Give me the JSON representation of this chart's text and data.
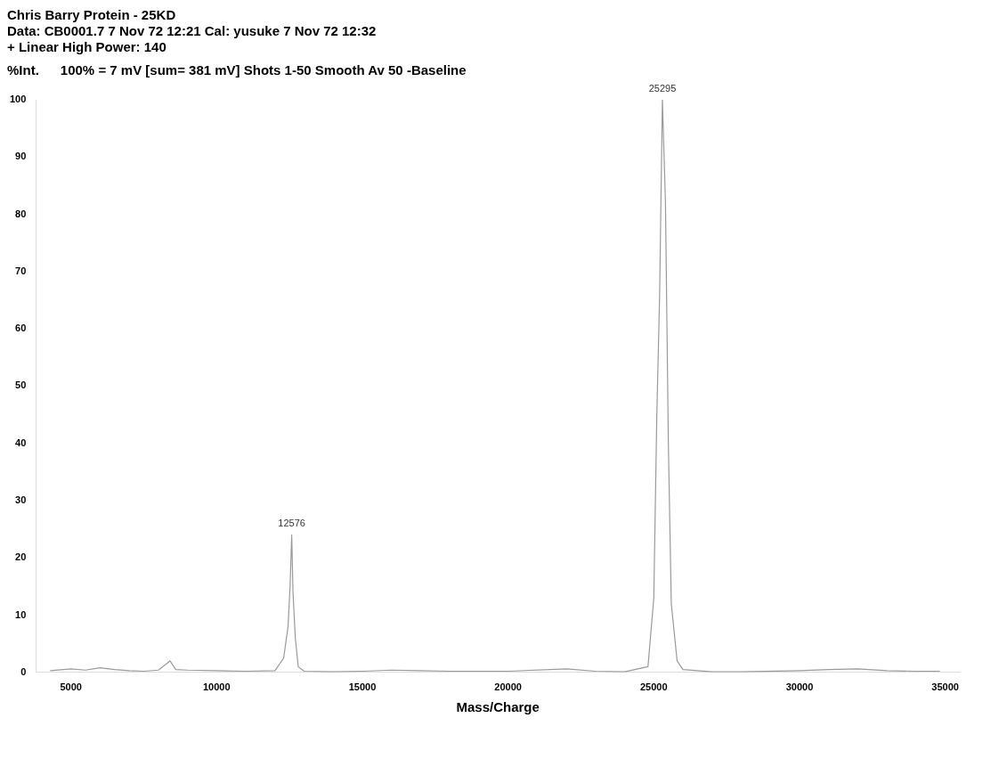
{
  "chart_data": {
    "type": "line",
    "title": "Chris Barry  Protein  - 25KD",
    "subtitle": "Data: CB0001.7 7 Nov 72 12:21 Cal: yusuke 7 Nov 72 12:32",
    "annotations": [
      "+ Linear High Power: 140",
      "100% = 7 mV [sum= 381 mV]  Shots 1-50 Smooth Av 50 -Baseline",
      {
        "text": "12576",
        "x": 12576,
        "y": 24
      },
      {
        "text": "25295",
        "x": 25295,
        "y": 100
      }
    ],
    "ylabel": "%Int.",
    "xlabel": "Mass/Charge",
    "series": [
      {
        "color": "#9a9a9a",
        "x": [
          4300,
          5000,
          5500,
          6000,
          6500,
          7000,
          7500,
          8000,
          8400,
          8600,
          9000,
          10000,
          11000,
          12000,
          12300,
          12450,
          12520,
          12576,
          12620,
          12700,
          12800,
          13000,
          14000,
          15000,
          16000,
          17000,
          18000,
          20000,
          22000,
          23000,
          24000,
          24800,
          25000,
          25100,
          25200,
          25295,
          25400,
          25500,
          25600,
          25800,
          26000,
          27000,
          28000,
          30000,
          31000,
          32000,
          33000,
          34000,
          34800
        ],
        "values": [
          0.3,
          0.6,
          0.4,
          0.8,
          0.5,
          0.3,
          0.2,
          0.4,
          2,
          0.5,
          0.4,
          0.3,
          0.2,
          0.3,
          2.5,
          8,
          15,
          24,
          14,
          6,
          1,
          0.2,
          0.1,
          0.2,
          0.4,
          0.3,
          0.2,
          0.2,
          0.6,
          0.2,
          0.1,
          1,
          13,
          44,
          66,
          100,
          82,
          40,
          12,
          2,
          0.5,
          0.1,
          0.1,
          0.3,
          0.5,
          0.6,
          0.3,
          0.2,
          0.2
        ]
      }
    ],
    "xlim": [
      3800,
      35500
    ],
    "xticks": [
      5000,
      10000,
      15000,
      20000,
      25000,
      30000,
      35000
    ],
    "ylim": [
      0,
      100
    ],
    "yticks": [
      0,
      10,
      20,
      30,
      40,
      50,
      60,
      70,
      80,
      90,
      100
    ],
    "legend": false,
    "marker": "none",
    "line_style": "solid"
  }
}
